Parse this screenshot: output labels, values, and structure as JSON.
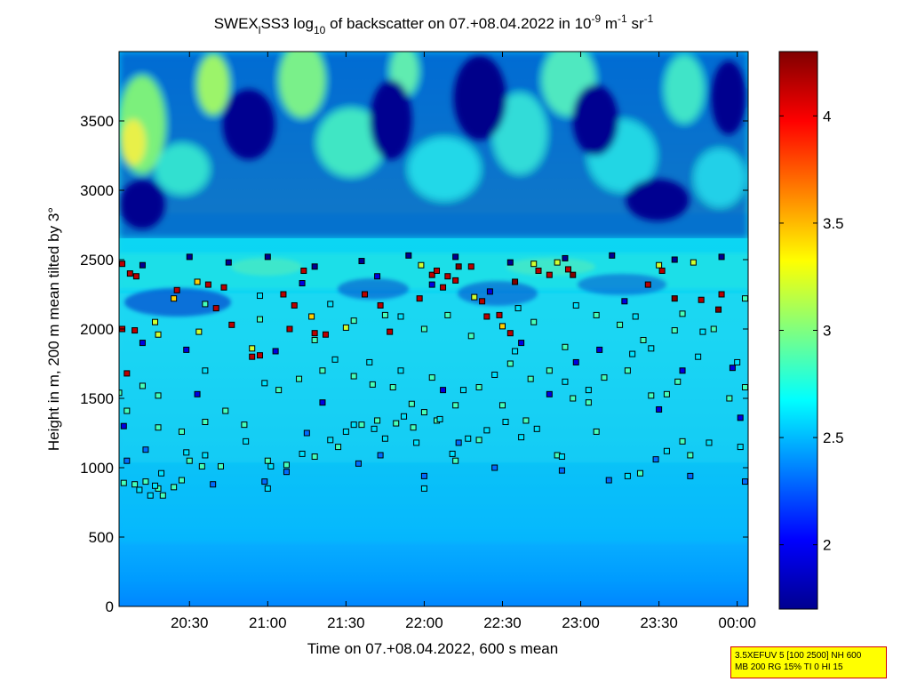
{
  "chart_data": {
    "type": "heatmap",
    "title": {
      "prefix": "SWEX",
      "sub1": "l",
      "mid": "SS3 log",
      "sub2": "10",
      "rest": " of backscatter on 07.+08.04.2022 in 10",
      "sup1": "-9",
      "unit1": " m",
      "sup2": "-1",
      "unit2": " sr",
      "sup3": "-1"
    },
    "xlabel": "Time on 07.+08.04.2022, 600 s mean",
    "ylabel": "Height in m, 200 m mean tilted by 3°",
    "x_ticks": [
      "20:30",
      "21:00",
      "21:30",
      "22:00",
      "22:30",
      "23:00",
      "23:30",
      "00:00"
    ],
    "x_tick_hours": [
      20.5,
      21.0,
      21.5,
      22.0,
      22.5,
      23.0,
      23.5,
      24.0
    ],
    "xlim_hours": [
      20.05,
      24.07
    ],
    "y_ticks": [
      "0",
      "500",
      "1000",
      "1500",
      "2000",
      "2500",
      "3000",
      "3500"
    ],
    "y_tick_values": [
      0,
      500,
      1000,
      1500,
      2000,
      2500,
      3000,
      3500
    ],
    "ylim": [
      0,
      4000
    ],
    "colorbar": {
      "ticks": [
        "2",
        "2.5",
        "3",
        "3.5",
        "4"
      ],
      "tick_values": [
        2,
        2.5,
        3,
        3.5,
        4
      ],
      "range": [
        1.7,
        4.3
      ],
      "colormap": "jet"
    },
    "markers": {
      "symbol": "square",
      "layers": [
        {
          "color_level": 4.15,
          "points": [
            [
              20.07,
              2470
            ],
            [
              20.12,
              2400
            ],
            [
              20.16,
              2380
            ],
            [
              20.42,
              2280
            ],
            [
              20.62,
              2320
            ],
            [
              20.67,
              2150
            ],
            [
              20.72,
              2300
            ],
            [
              20.77,
              2030
            ],
            [
              20.9,
              1800
            ],
            [
              20.95,
              1810
            ],
            [
              21.1,
              2250
            ],
            [
              21.14,
              2000
            ],
            [
              21.17,
              2170
            ],
            [
              21.23,
              2420
            ],
            [
              21.3,
              1970
            ],
            [
              21.37,
              1960
            ],
            [
              21.62,
              2250
            ],
            [
              21.72,
              2170
            ],
            [
              21.78,
              1980
            ],
            [
              21.97,
              2220
            ],
            [
              22.05,
              2390
            ],
            [
              22.08,
              2420
            ],
            [
              22.12,
              2300
            ],
            [
              22.15,
              2380
            ],
            [
              22.2,
              2350
            ],
            [
              22.3,
              2450
            ],
            [
              22.37,
              2200
            ],
            [
              22.4,
              2090
            ],
            [
              22.48,
              2100
            ],
            [
              22.55,
              1970
            ],
            [
              22.73,
              2420
            ],
            [
              22.8,
              2390
            ],
            [
              22.92,
              2430
            ],
            [
              23.43,
              2320
            ],
            [
              23.52,
              2420
            ],
            [
              23.77,
              2210
            ],
            [
              23.9,
              2250
            ],
            [
              20.1,
              1680
            ],
            [
              20.07,
              2000
            ],
            [
              20.15,
              1990
            ]
          ]
        },
        {
          "color_level": 3.45,
          "points": [
            [
              20.4,
              2220
            ],
            [
              20.55,
              2340
            ],
            [
              21.28,
              2090
            ],
            [
              22.5,
              2020
            ]
          ]
        },
        {
          "color_level": 3.2,
          "points": [
            [
              20.28,
              2050
            ],
            [
              20.3,
              1960
            ],
            [
              20.56,
              1980
            ],
            [
              20.9,
              1860
            ],
            [
              21.5,
              2010
            ],
            [
              21.98,
              2460
            ],
            [
              22.32,
              2230
            ],
            [
              22.7,
              2470
            ],
            [
              22.85,
              2480
            ],
            [
              23.5,
              2460
            ],
            [
              23.72,
              2480
            ]
          ]
        },
        {
          "color_level": 2.85,
          "points": [
            [
              20.08,
              890
            ],
            [
              20.15,
              880
            ],
            [
              20.22,
              900
            ],
            [
              20.3,
              850
            ],
            [
              20.33,
              800
            ],
            [
              20.4,
              860
            ],
            [
              20.45,
              910
            ],
            [
              20.5,
              1050
            ],
            [
              20.58,
              1010
            ],
            [
              20.7,
              1010
            ],
            [
              21.0,
              1050
            ],
            [
              21.12,
              1020
            ],
            [
              21.3,
              1080
            ],
            [
              21.45,
              1150
            ],
            [
              21.6,
              1310
            ],
            [
              21.7,
              1340
            ],
            [
              21.82,
              1320
            ],
            [
              21.93,
              1290
            ],
            [
              22.0,
              1400
            ],
            [
              22.08,
              1340
            ],
            [
              22.2,
              1050
            ],
            [
              22.35,
              1200
            ],
            [
              22.5,
              1450
            ],
            [
              22.65,
              1340
            ],
            [
              22.85,
              1090
            ],
            [
              23.1,
              1260
            ],
            [
              23.38,
              960
            ],
            [
              23.65,
              1190
            ],
            [
              23.7,
              1090
            ],
            [
              20.3,
              1290
            ],
            [
              20.45,
              1260
            ],
            [
              20.6,
              1330
            ],
            [
              20.73,
              1410
            ],
            [
              20.85,
              1310
            ],
            [
              21.07,
              1560
            ],
            [
              21.2,
              1640
            ],
            [
              21.35,
              1700
            ],
            [
              21.55,
              1660
            ],
            [
              21.67,
              1600
            ],
            [
              21.8,
              1580
            ],
            [
              21.92,
              1460
            ],
            [
              22.05,
              1650
            ],
            [
              22.2,
              1450
            ],
            [
              22.35,
              1580
            ],
            [
              22.55,
              1750
            ],
            [
              22.68,
              1640
            ],
            [
              22.8,
              1700
            ],
            [
              22.95,
              1500
            ],
            [
              23.05,
              1470
            ],
            [
              23.15,
              1650
            ],
            [
              23.3,
              1700
            ],
            [
              23.45,
              1520
            ],
            [
              23.55,
              1530
            ],
            [
              23.62,
              1620
            ],
            [
              23.95,
              1500
            ],
            [
              24.05,
              1580
            ],
            [
              20.1,
              1410
            ],
            [
              20.05,
              1540
            ],
            [
              20.2,
              1590
            ],
            [
              20.3,
              1520
            ],
            [
              20.6,
              2180
            ],
            [
              20.95,
              2070
            ],
            [
              21.3,
              1920
            ],
            [
              21.55,
              2060
            ],
            [
              21.75,
              2100
            ],
            [
              22.0,
              2000
            ],
            [
              22.15,
              2100
            ],
            [
              22.3,
              1950
            ],
            [
              22.7,
              2050
            ],
            [
              22.9,
              1870
            ],
            [
              23.1,
              2100
            ],
            [
              23.25,
              2030
            ],
            [
              23.4,
              1920
            ],
            [
              23.6,
              1990
            ],
            [
              23.65,
              2110
            ],
            [
              23.85,
              2000
            ],
            [
              24.05,
              2220
            ]
          ]
        },
        {
          "color_level": 2.6,
          "points": [
            [
              20.25,
              800
            ],
            [
              20.18,
              840
            ],
            [
              20.28,
              870
            ],
            [
              20.32,
              960
            ],
            [
              20.48,
              1110
            ],
            [
              20.6,
              1090
            ],
            [
              20.86,
              1190
            ],
            [
              21.02,
              1010
            ],
            [
              21.22,
              1100
            ],
            [
              21.4,
              1200
            ],
            [
              21.5,
              1260
            ],
            [
              21.55,
              1310
            ],
            [
              21.68,
              1280
            ],
            [
              21.75,
              1210
            ],
            [
              21.87,
              1370
            ],
            [
              21.95,
              1180
            ],
            [
              22.1,
              1350
            ],
            [
              22.18,
              1100
            ],
            [
              22.28,
              1210
            ],
            [
              22.4,
              1270
            ],
            [
              22.52,
              1330
            ],
            [
              22.62,
              1220
            ],
            [
              22.72,
              1280
            ],
            [
              22.88,
              1080
            ],
            [
              23.3,
              940
            ],
            [
              23.55,
              1120
            ],
            [
              23.82,
              1180
            ],
            [
              24.02,
              1150
            ],
            [
              21.0,
              850
            ],
            [
              22.0,
              850
            ],
            [
              20.6,
              1700
            ],
            [
              20.98,
              1610
            ],
            [
              21.43,
              1780
            ],
            [
              21.65,
              1760
            ],
            [
              21.85,
              1700
            ],
            [
              22.25,
              1560
            ],
            [
              22.45,
              1670
            ],
            [
              22.58,
              1840
            ],
            [
              22.9,
              1620
            ],
            [
              23.05,
              1560
            ],
            [
              23.33,
              1820
            ],
            [
              23.75,
              1800
            ],
            [
              24.0,
              1760
            ],
            [
              20.95,
              2240
            ],
            [
              21.4,
              2180
            ],
            [
              21.85,
              2090
            ],
            [
              22.6,
              2150
            ],
            [
              22.97,
              2170
            ],
            [
              23.35,
              2090
            ],
            [
              23.45,
              1860
            ],
            [
              23.78,
              1980
            ]
          ]
        },
        {
          "color_level": 2.3,
          "points": [
            [
              20.1,
              1050
            ],
            [
              20.22,
              1130
            ],
            [
              20.65,
              880
            ],
            [
              20.98,
              900
            ],
            [
              21.12,
              970
            ],
            [
              21.58,
              1030
            ],
            [
              21.72,
              1090
            ],
            [
              22.0,
              940
            ],
            [
              22.45,
              1000
            ],
            [
              22.88,
              980
            ],
            [
              23.18,
              910
            ],
            [
              23.48,
              1060
            ],
            [
              23.7,
              940
            ],
            [
              24.05,
              900
            ],
            [
              21.25,
              1250
            ],
            [
              22.22,
              1180
            ]
          ]
        },
        {
          "color_level": 1.95,
          "points": [
            [
              20.2,
              1900
            ],
            [
              20.48,
              1850
            ],
            [
              21.05,
              1840
            ],
            [
              21.22,
              2330
            ],
            [
              21.7,
              2380
            ],
            [
              22.05,
              2320
            ],
            [
              22.42,
              2270
            ],
            [
              22.62,
              1900
            ],
            [
              22.97,
              1760
            ],
            [
              23.12,
              1850
            ],
            [
              23.28,
              2200
            ],
            [
              23.65,
              1700
            ],
            [
              23.97,
              1720
            ],
            [
              20.08,
              1300
            ],
            [
              20.55,
              1530
            ],
            [
              21.35,
              1470
            ],
            [
              22.12,
              1560
            ],
            [
              22.8,
              1530
            ],
            [
              23.5,
              1420
            ],
            [
              24.02,
              1360
            ]
          ]
        },
        {
          "color_level": 1.75,
          "points": [
            [
              20.2,
              2460
            ],
            [
              20.5,
              2520
            ],
            [
              20.75,
              2480
            ],
            [
              21.0,
              2520
            ],
            [
              21.3,
              2450
            ],
            [
              21.6,
              2490
            ],
            [
              21.9,
              2530
            ],
            [
              22.2,
              2520
            ],
            [
              22.55,
              2480
            ],
            [
              22.9,
              2510
            ],
            [
              23.2,
              2530
            ],
            [
              23.6,
              2500
            ],
            [
              23.9,
              2520
            ]
          ]
        },
        {
          "color_level": 4.3,
          "points": [
            [
              22.22,
              2450
            ],
            [
              22.58,
              2340
            ],
            [
              22.95,
              2390
            ],
            [
              23.6,
              2220
            ],
            [
              23.88,
              2140
            ]
          ]
        }
      ]
    }
  },
  "info_box": {
    "line1": "3.5XEFUV 5 [100 2500] NH 600",
    "line2": "MB 200 RG 15% TI 0 HI 15"
  }
}
